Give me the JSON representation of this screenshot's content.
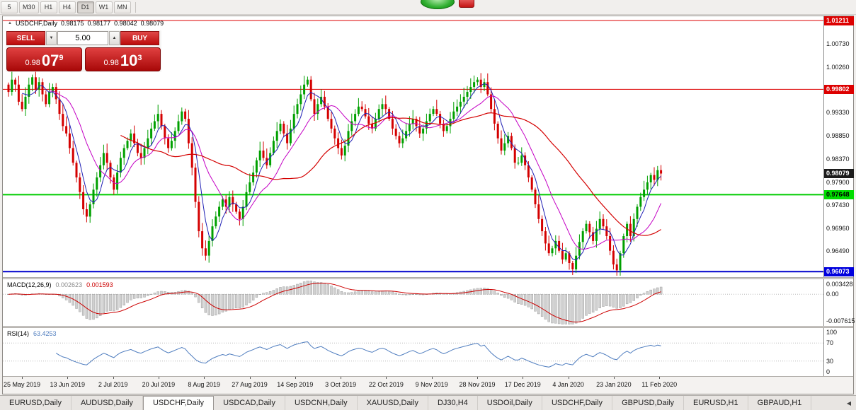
{
  "colors": {
    "candle_up": "#00a000",
    "candle_down": "#d40000",
    "ma_fast": "#1f1fb4",
    "ma_mid": "#c400c4",
    "ma_slow": "#d40000",
    "macd_hist_fill": "#d0d0d0",
    "macd_hist_stroke": "#909090",
    "macd_signal": "#cc0000",
    "rsi_line": "#4f7dbf",
    "sell_buy_red": "#bc0c0c"
  },
  "icons": {
    "spinner_up": "▲",
    "spinner_down": "▼",
    "one_click_toggle": "▲",
    "tab_scroll_left": "◀"
  },
  "toolbar": {
    "timeframes": [
      "5",
      "M30",
      "H1",
      "H4",
      "D1",
      "W1",
      "MN"
    ],
    "active_timeframe": "D1"
  },
  "chart_header": {
    "symbol": "USDCHF,Daily",
    "open": "0.98175",
    "high": "0.98177",
    "low": "0.98042",
    "close": "0.98079"
  },
  "trade_panel": {
    "sell_label": "SELL",
    "buy_label": "BUY",
    "volume": "5.00",
    "bid": {
      "prefix": "0.98",
      "big": "07",
      "sup": "9"
    },
    "ask": {
      "prefix": "0.98",
      "big": "10",
      "sup": "3"
    }
  },
  "price_axis": {
    "grid_labels": [
      "1.00730",
      "1.00260",
      "0.99330",
      "0.98850",
      "0.98370",
      "0.97900",
      "0.97430",
      "0.96960",
      "0.96490"
    ],
    "badges": [
      {
        "value": "1.01211",
        "bg": "#dd0000",
        "fg": "#ffffff"
      },
      {
        "value": "0.99802",
        "bg": "#dd0000",
        "fg": "#ffffff"
      },
      {
        "value": "0.98079",
        "bg": "#1c1c1c",
        "fg": "#ffffff"
      },
      {
        "value": "0.97648",
        "bg": "#00dd00",
        "fg": "#000000"
      },
      {
        "value": "0.96073",
        "bg": "#0000dd",
        "fg": "#ffffff"
      }
    ]
  },
  "indicators": {
    "macd": {
      "name": "MACD(12,26,9)",
      "value": "0.002623",
      "signal": "0.001593",
      "axis": [
        "0.003428",
        "0.00",
        "-0.007615"
      ]
    },
    "rsi": {
      "name": "RSI(14)",
      "value": "63.4253",
      "axis": [
        "100",
        "70",
        "30",
        "0"
      ],
      "levels": [
        70,
        30
      ]
    }
  },
  "x_axis": {
    "dates": [
      "25 May 2019",
      "13 Jun 2019",
      "2 Jul 2019",
      "20 Jul 2019",
      "8 Aug 2019",
      "27 Aug 2019",
      "14 Sep 2019",
      "3 Oct 2019",
      "22 Oct 2019",
      "9 Nov 2019",
      "28 Nov 2019",
      "17 Dec 2019",
      "4 Jan 2020",
      "23 Jan 2020",
      "11 Feb 2020"
    ]
  },
  "tabs": {
    "items": [
      "EURUSD,Daily",
      "AUDUSD,Daily",
      "USDCHF,Daily",
      "USDCAD,Daily",
      "USDCNH,Daily",
      "XAUUSD,Daily",
      "DJ30,H4",
      "USDOil,Daily",
      "USDCHF,Daily",
      "GBPUSD,Daily",
      "EURUSD,H1",
      "GBPAUD,H1"
    ],
    "active_index": 2
  },
  "chart_data": {
    "type": "candlestick",
    "symbol": "USDCHF",
    "timeframe": "Daily",
    "ylim": [
      0.9599,
      1.0124
    ],
    "hlines": [
      {
        "price": 1.01211,
        "color": "#dd0000",
        "width": 1
      },
      {
        "price": 0.99802,
        "color": "#dd0000",
        "width": 1
      },
      {
        "price": 0.97648,
        "color": "#00cc00",
        "width": 2
      },
      {
        "price": 0.96073,
        "color": "#0000cc",
        "width": 2
      }
    ],
    "ma_periods": {
      "fast": 5,
      "mid": 13,
      "slow": 34
    },
    "macd_params": [
      12,
      26,
      9
    ],
    "rsi_period": 14,
    "closes": [
      0.9975,
      1.0,
      0.999,
      0.9955,
      0.994,
      0.9965,
      0.999,
      1.0005,
      0.998,
      0.9995,
      0.997,
      0.995,
      0.9975,
      0.9985,
      0.996,
      0.993,
      0.9905,
      0.989,
      0.986,
      0.983,
      0.98,
      0.977,
      0.9735,
      0.972,
      0.9745,
      0.9775,
      0.98,
      0.9825,
      0.985,
      0.983,
      0.98,
      0.9775,
      0.981,
      0.984,
      0.986,
      0.9875,
      0.989,
      0.987,
      0.985,
      0.984,
      0.986,
      0.988,
      0.99,
      0.9915,
      0.993,
      0.9905,
      0.988,
      0.986,
      0.9875,
      0.9895,
      0.9915,
      0.9935,
      0.992,
      0.987,
      0.982,
      0.975,
      0.969,
      0.9655,
      0.964,
      0.967,
      0.97,
      0.972,
      0.974,
      0.9755,
      0.974,
      0.976,
      0.9745,
      0.973,
      0.9715,
      0.974,
      0.977,
      0.979,
      0.981,
      0.9835,
      0.9855,
      0.984,
      0.9825,
      0.985,
      0.9875,
      0.9895,
      0.991,
      0.989,
      0.987,
      0.99,
      0.993,
      0.995,
      0.997,
      0.999,
      1.0,
      0.996,
      0.993,
      0.995,
      0.9965,
      0.9945,
      0.992,
      0.99,
      0.988,
      0.986,
      0.9845,
      0.9865,
      0.9895,
      0.9915,
      0.993,
      0.9945,
      0.994,
      0.9925,
      0.991,
      0.99,
      0.992,
      0.994,
      0.995,
      0.994,
      0.992,
      0.99,
      0.9885,
      0.987,
      0.988,
      0.9895,
      0.991,
      0.992,
      0.9905,
      0.989,
      0.99,
      0.9915,
      0.993,
      0.994,
      0.993,
      0.991,
      0.9895,
      0.9905,
      0.992,
      0.9935,
      0.9945,
      0.9955,
      0.9965,
      0.9975,
      0.9985,
      0.9995,
      1.0,
      0.9985,
      0.9995,
      0.997,
      0.994,
      0.991,
      0.988,
      0.9855,
      0.987,
      0.9885,
      0.986,
      0.983,
      0.983,
      0.9845,
      0.9825,
      0.98,
      0.9775,
      0.9745,
      0.9715,
      0.969,
      0.9665,
      0.9645,
      0.9655,
      0.967,
      0.965,
      0.9632,
      0.9645,
      0.9625,
      0.9612,
      0.964,
      0.9668,
      0.969,
      0.9705,
      0.9688,
      0.967,
      0.9695,
      0.9715,
      0.97,
      0.968,
      0.965,
      0.9622,
      0.961,
      0.9645,
      0.968,
      0.9705,
      0.968,
      0.9715,
      0.974,
      0.976,
      0.9775,
      0.979,
      0.9805,
      0.9795,
      0.9815,
      0.9808
    ]
  }
}
